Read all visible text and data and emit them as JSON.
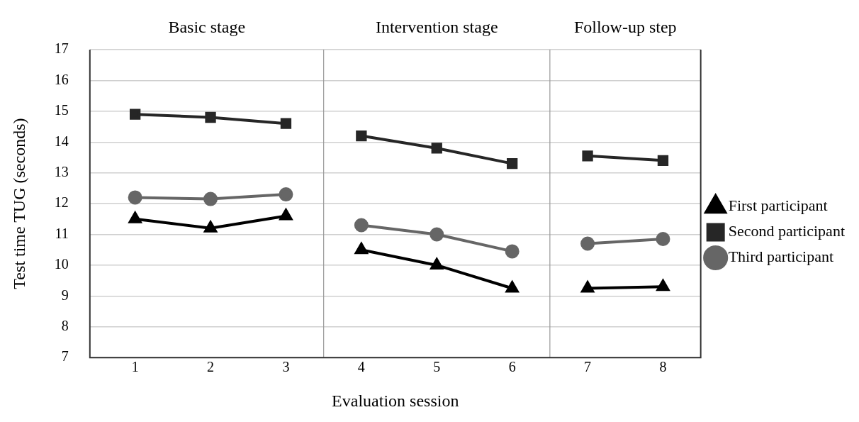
{
  "chart_data": {
    "type": "line",
    "xlabel": "Evaluation session",
    "ylabel": "Test time TUG (seconds)",
    "x": [
      1,
      2,
      3,
      4,
      5,
      6,
      7,
      8
    ],
    "xlim": [
      0.4,
      8.5
    ],
    "xticks": [
      1,
      2,
      3,
      4,
      5,
      6,
      7,
      8
    ],
    "ylim": [
      7,
      17
    ],
    "yticks": [
      7,
      8,
      9,
      10,
      11,
      12,
      13,
      14,
      15,
      16,
      17
    ],
    "grid": "y",
    "legend": "right",
    "series": [
      {
        "name": "First participant",
        "color": "#000000",
        "marker": "triangle",
        "values": [
          11.5,
          11.2,
          11.6,
          10.5,
          10.0,
          9.25,
          9.25,
          9.3
        ]
      },
      {
        "name": "Second participant",
        "color": "#262626",
        "marker": "square",
        "values": [
          14.9,
          14.8,
          14.6,
          14.2,
          13.8,
          13.3,
          13.55,
          13.4
        ]
      },
      {
        "name": "Third participant",
        "color": "#666666",
        "marker": "circle",
        "values": [
          12.2,
          12.15,
          12.3,
          11.3,
          11.0,
          10.45,
          10.7,
          10.85
        ]
      }
    ],
    "ref_lines": [
      {
        "axis": "x",
        "value": 3.5,
        "color": "#999999"
      },
      {
        "axis": "x",
        "value": 6.5,
        "color": "#999999"
      }
    ],
    "annotations": [
      "Basic stage",
      "Intervention stage",
      "Follow-up step"
    ]
  }
}
